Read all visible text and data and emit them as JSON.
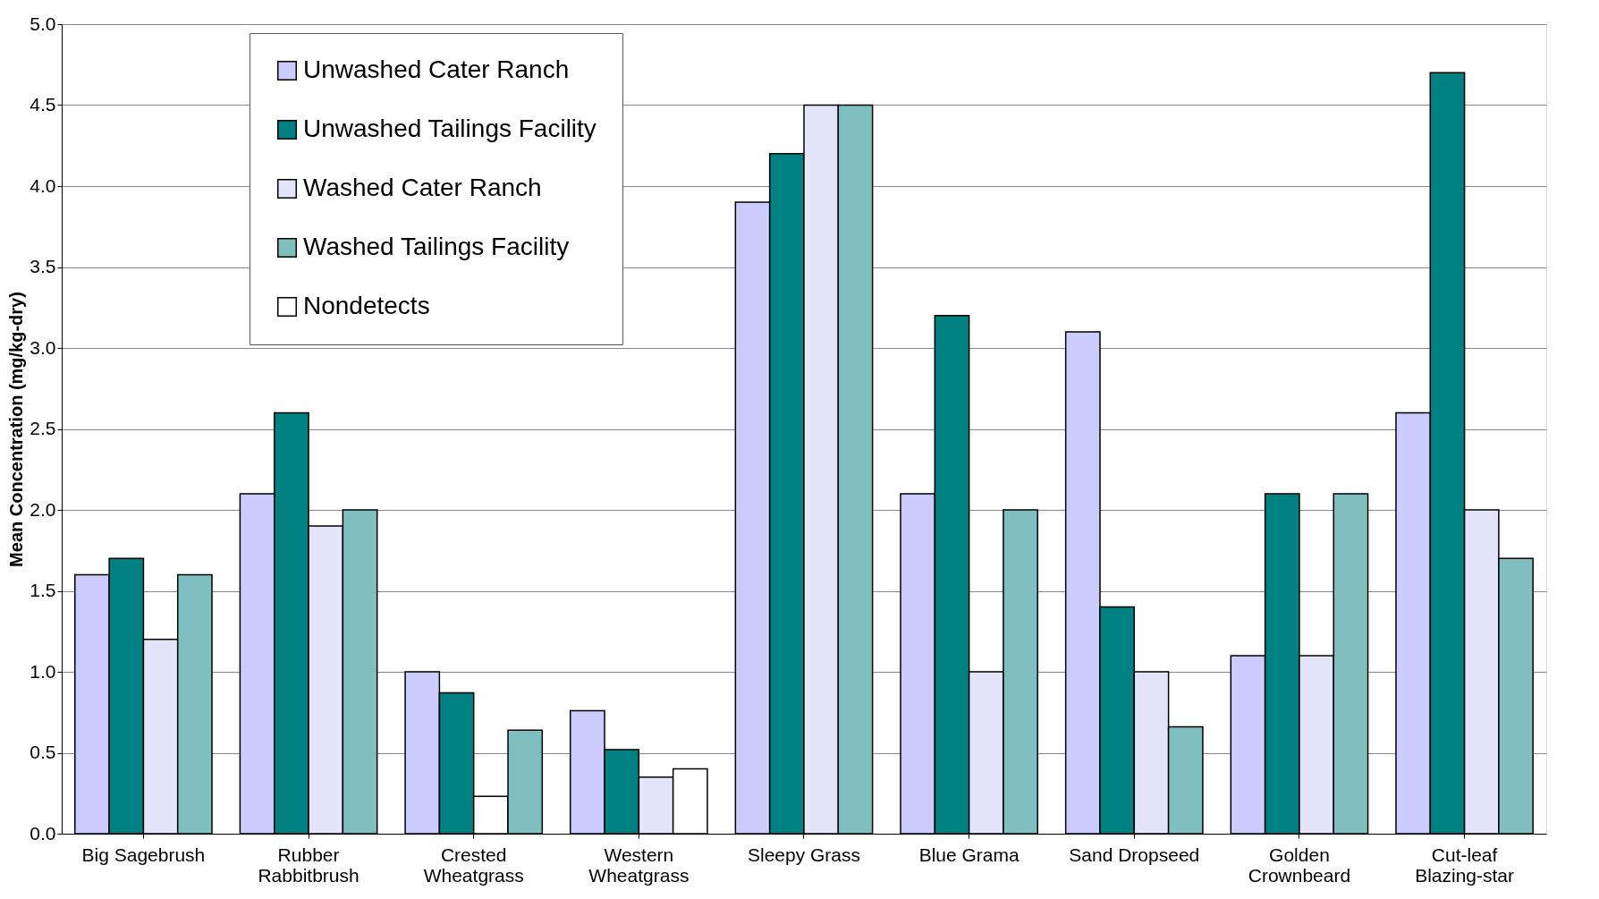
{
  "chart_data": {
    "type": "bar",
    "ylabel": "Mean Concentration (mg/kg-dry)",
    "categories": [
      "Big Sagebrush",
      "Rubber Rabbitbrush",
      "Crested Wheatgrass",
      "Western Wheatgrass",
      "Sleepy Grass",
      "Blue Grama",
      "Sand Dropseed",
      "Golden Crownbeard",
      "Cut-leaf Blazing-star"
    ],
    "series": [
      {
        "name": "Unwashed Cater Ranch",
        "color": "#ccccff",
        "values": [
          1.6,
          2.1,
          1.0,
          0.76,
          3.9,
          2.1,
          3.1,
          1.1,
          2.6
        ]
      },
      {
        "name": "Unwashed Tailings Facility",
        "color": "#008080",
        "values": [
          1.7,
          2.6,
          0.87,
          0.52,
          4.2,
          3.2,
          1.4,
          2.1,
          4.7
        ]
      },
      {
        "name": "Washed Cater Ranch",
        "color": "#e4e4fb",
        "values": [
          1.2,
          1.9,
          0.23,
          0.35,
          4.5,
          1.0,
          1.0,
          1.1,
          2.0
        ],
        "colors": [
          "#e4e4fb",
          "#e4e4fb",
          "#ffffff",
          "#e4e4fb",
          "#e4e4fb",
          "#e4e4fb",
          "#e4e4fb",
          "#e4e4fb",
          "#e4e4fb"
        ]
      },
      {
        "name": "Washed Tailings Facility",
        "color": "#7fbfbf",
        "values": [
          1.6,
          2.0,
          0.64,
          0.4,
          4.5,
          2.0,
          0.66,
          2.1,
          1.7
        ],
        "colors": [
          "#7fbfbf",
          "#7fbfbf",
          "#7fbfbf",
          "#ffffff",
          "#7fbfbf",
          "#7fbfbf",
          "#7fbfbf",
          "#7fbfbf",
          "#7fbfbf"
        ]
      },
      {
        "name": "Nondetects",
        "color": "#ffffff",
        "values": [
          null,
          null,
          null,
          null,
          null,
          null,
          null,
          null,
          null
        ]
      }
    ],
    "ylim": [
      0,
      5
    ],
    "yticks": [
      {
        "value": 0,
        "label": "0.0"
      },
      {
        "value": 0.5,
        "label": "0.5"
      },
      {
        "value": 1,
        "label": "1.0"
      },
      {
        "value": 1.5,
        "label": "1.5"
      },
      {
        "value": 2,
        "label": "2.0"
      },
      {
        "value": 2.5,
        "label": "2.5"
      },
      {
        "value": 3,
        "label": "3.0"
      },
      {
        "value": 3.5,
        "label": "3.5"
      },
      {
        "value": 4,
        "label": "4.0"
      },
      {
        "value": 4.5,
        "label": "4.5"
      },
      {
        "value": 5,
        "label": "5.0"
      }
    ],
    "grid": "y",
    "legend": "top left"
  }
}
